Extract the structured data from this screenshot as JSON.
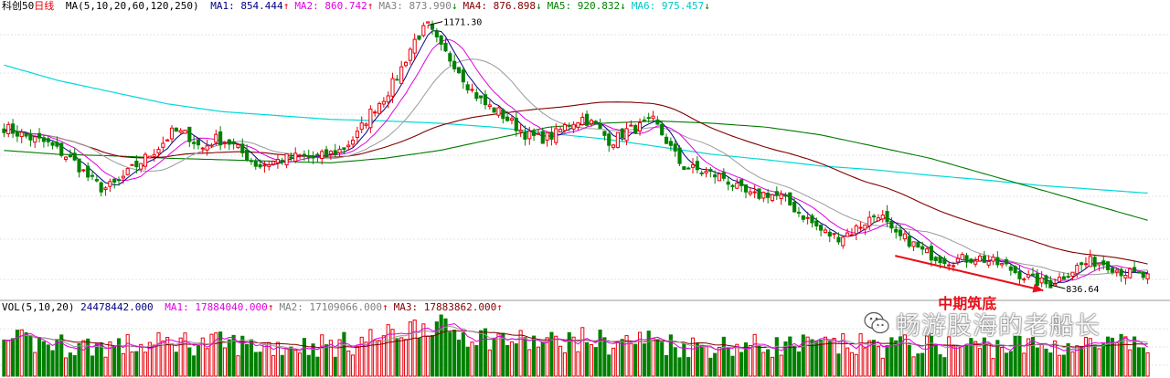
{
  "price_header": {
    "symbol": "科创50",
    "period": "日线",
    "ma_label": "MA(5,10,20,60,120,250)",
    "items": [
      {
        "name": "MA1:",
        "value": "854.444",
        "arrow": "↑",
        "color": "#000080"
      },
      {
        "name": "MA2:",
        "value": "860.742",
        "arrow": "↑",
        "color": "#e000e0"
      },
      {
        "name": "MA3:",
        "value": "873.990",
        "arrow": "↓",
        "color": "#808080"
      },
      {
        "name": "MA4:",
        "value": "876.898",
        "arrow": "↓",
        "color": "#800000"
      },
      {
        "name": "MA5:",
        "value": "920.832",
        "arrow": "↓",
        "color": "#008000"
      },
      {
        "name": "MA6:",
        "value": "975.457",
        "arrow": "↓",
        "color": "#00c8c8"
      }
    ]
  },
  "vol_header": {
    "label": "VOL(5,10,20)",
    "value": "24478442.000",
    "items": [
      {
        "name": "MA1:",
        "value": "17884040.000",
        "arrow": "↑",
        "color": "#e000e0"
      },
      {
        "name": "MA2:",
        "value": "17109066.000",
        "arrow": "↑",
        "color": "#808080"
      },
      {
        "name": "MA3:",
        "value": "17883862.000",
        "arrow": "↑",
        "color": "#800000"
      }
    ]
  },
  "annotations": {
    "high_label": "1171.30",
    "low_label": "836.64",
    "arrow_text": "中期筑底"
  },
  "watermark": {
    "text": "畅游股海的老船长"
  },
  "colors": {
    "up": "#e8000b",
    "down": "#008000",
    "grid": "#e3e3e3",
    "arrow": "#e8101a"
  },
  "chart_data": {
    "type": "candlestick",
    "title": "科创50 日线",
    "y_range": [
      825,
      1185
    ],
    "price_high": 1171.3,
    "price_low": 836.64,
    "close_path": [
      1040,
      1032,
      1025,
      1020,
      1008,
      995,
      975,
      960,
      968,
      985,
      1000,
      1015,
      1035,
      1030,
      1012,
      1025,
      1020,
      1005,
      990,
      995,
      1000,
      1002,
      1000,
      1005,
      1012,
      1030,
      1060,
      1080,
      1110,
      1150,
      1171,
      1140,
      1120,
      1090,
      1070,
      1060,
      1045,
      1030,
      1025,
      1030,
      1045,
      1052,
      1040,
      1020,
      1035,
      1040,
      1048,
      1020,
      990,
      985,
      980,
      975,
      960,
      950,
      955,
      950,
      935,
      920,
      905,
      898,
      905,
      918,
      930,
      900,
      895,
      880,
      873,
      868,
      870,
      872,
      866,
      860,
      850,
      842,
      837,
      848,
      860,
      867,
      865,
      855,
      850,
      846
    ],
    "ma_levels": {
      "MA1": 854.444,
      "MA2": 860.742,
      "MA3": 873.99,
      "MA4": 876.898,
      "MA5": 920.832,
      "MA6": 975.457
    },
    "ma120_path": [
      1010,
      1005,
      1003,
      1000,
      998,
      996,
      994,
      1000,
      1010,
      1025,
      1040,
      1045,
      1048,
      1045,
      1040,
      1030,
      1015,
      1000,
      980,
      960,
      940,
      920
    ],
    "ma250_path": [
      1120,
      1100,
      1085,
      1070,
      1060,
      1055,
      1050,
      1048,
      1045,
      1040,
      1032,
      1025,
      1015,
      1005,
      998,
      990,
      985,
      978,
      972,
      965,
      960,
      955
    ],
    "volume": {
      "latest": 24478442.0,
      "ma5": 17884040.0,
      "ma10": 17109066.0,
      "ma20": 17883862.0
    }
  }
}
